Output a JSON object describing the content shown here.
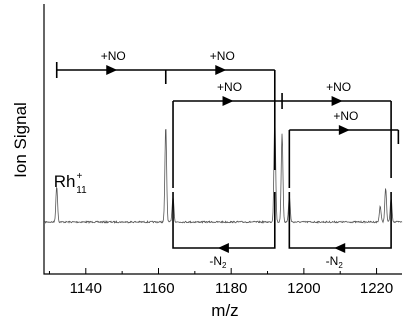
{
  "chart_data": {
    "type": "line",
    "xlabel": "m/z",
    "ylabel": "Ion Signal",
    "xlim": [
      1128.5,
      1227
    ],
    "xticks": [
      1140,
      1160,
      1180,
      1200,
      1220
    ],
    "grid": false,
    "species_label": {
      "base": "Rh",
      "superscript": "+",
      "subscript": "11",
      "peak_x": 1132
    },
    "peaks": [
      {
        "x": 1132,
        "height": 0.18
      },
      {
        "x": 1162,
        "height": 0.48
      },
      {
        "x": 1164,
        "height": 0.13
      },
      {
        "x": 1192,
        "height": 0.52
      },
      {
        "x": 1194,
        "height": 0.44
      },
      {
        "x": 1196,
        "height": 0.13
      },
      {
        "x": 1221,
        "height": 0.08
      },
      {
        "x": 1222.5,
        "height": 0.17
      },
      {
        "x": 1224,
        "height": 0.12
      }
    ],
    "annotations": {
      "add_label": "+NO",
      "loss_base": "-N",
      "loss_sub": "2",
      "add_chains": [
        {
          "xs": [
            1132,
            1162,
            1192
          ],
          "level": 0
        },
        {
          "xs": [
            1164,
            1194,
            1224
          ],
          "level": 1
        },
        {
          "xs": [
            1196,
            1226
          ],
          "level": 2
        }
      ],
      "loss_links": [
        {
          "from": 1192,
          "to": 1164
        },
        {
          "from": 1224,
          "to": 1196
        }
      ]
    }
  }
}
